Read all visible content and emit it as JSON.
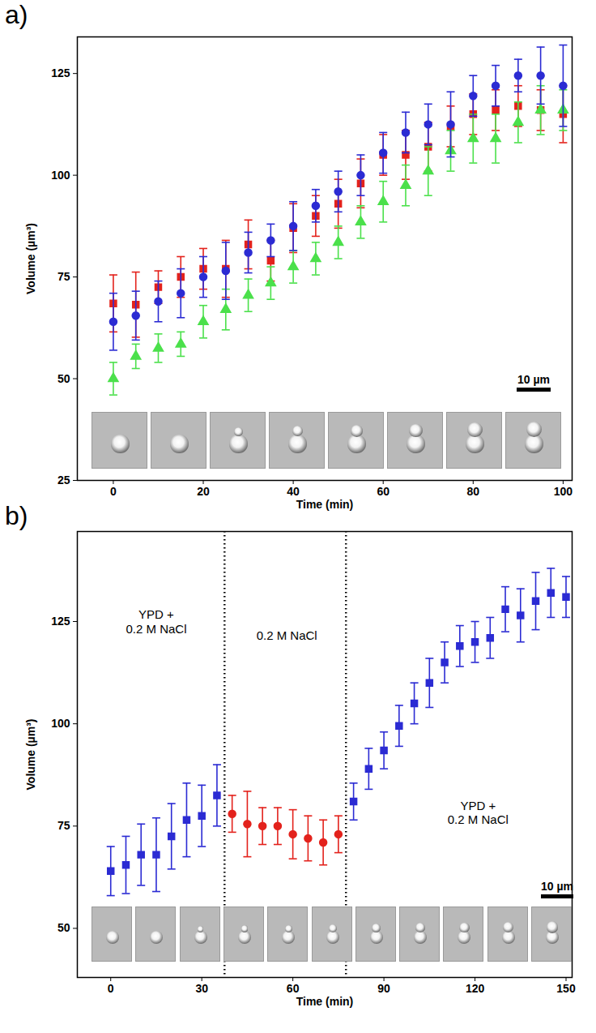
{
  "chart_data": [
    {
      "title": "a)",
      "type": "scatter",
      "x_label": "Time (min)",
      "y_label": "Volume (µm³)",
      "xlim": [
        -8,
        102
      ],
      "xticks": [
        0,
        20,
        40,
        60,
        80,
        100
      ],
      "ylim": [
        25,
        134
      ],
      "yticks": [
        25,
        50,
        75,
        100,
        125
      ],
      "scale_bar": "10 µm",
      "x": [
        0,
        5,
        10,
        15,
        20,
        25,
        30,
        35,
        40,
        45,
        50,
        55,
        60,
        65,
        70,
        75,
        80,
        85,
        90,
        95,
        100
      ],
      "series": [
        {
          "color": "#e3221c",
          "marker": "square",
          "values": [
            68.5,
            68.2,
            72.5,
            75,
            77,
            77,
            83,
            79,
            87,
            90,
            93,
            98,
            105,
            105,
            107,
            112,
            115,
            116,
            117,
            116,
            115
          ],
          "errors": [
            7,
            8,
            4,
            5,
            5,
            7,
            6,
            5,
            6,
            5,
            6,
            6,
            5,
            6,
            6,
            5,
            5,
            5,
            5,
            5,
            7
          ]
        },
        {
          "color": "#4be04b",
          "marker": "triangle",
          "values": [
            50,
            55.5,
            57.5,
            58.5,
            64,
            67,
            70.5,
            73.5,
            77.5,
            79.5,
            83.5,
            88.5,
            93.5,
            97.5,
            101,
            106,
            109,
            109,
            113,
            116,
            116
          ],
          "errors": [
            4,
            3,
            3.5,
            3,
            4,
            5,
            4,
            4,
            4,
            4,
            4,
            4,
            5,
            5,
            6,
            5,
            6,
            6,
            5,
            6,
            5
          ]
        },
        {
          "color": "#2b2bd3",
          "marker": "circle",
          "values": [
            64,
            65.5,
            69,
            71,
            75,
            76.5,
            81,
            84,
            87.5,
            92.5,
            96,
            100,
            105.5,
            110.5,
            112.5,
            112.5,
            119.5,
            122,
            124.5,
            124.5,
            122
          ],
          "errors": [
            7,
            6,
            5,
            6,
            5,
            7,
            5,
            4,
            6,
            4,
            5,
            5,
            5,
            5,
            5,
            8,
            5,
            5,
            4,
            7,
            10
          ]
        }
      ]
    },
    {
      "title": "b)",
      "type": "scatter",
      "x_label": "Time (min)",
      "y_label": "Volume (µm³)",
      "xlim": [
        -11,
        152
      ],
      "xticks": [
        0,
        30,
        60,
        90,
        120,
        150
      ],
      "ylim": [
        38,
        147
      ],
      "yticks": [
        50,
        75,
        100,
        125
      ],
      "scale_bar": "10 µm",
      "vlines": {
        "values": [
          37.5,
          77.5
        ],
        "line_style": "dotted"
      },
      "annotations": [
        {
          "text": "YPD +\n0.2 M NaCl",
          "x": 15,
          "y": 125
        },
        {
          "text": "0.2 M NaCl",
          "x": 58,
          "y": 121.6
        },
        {
          "text": "YPD +\n0.2 M NaCl",
          "x": 121,
          "y": 78.4
        }
      ],
      "series": [
        {
          "color": "#2b2bd3",
          "marker": "square",
          "x": [
            0,
            5,
            10,
            15,
            20,
            25,
            30,
            35
          ],
          "values": [
            64,
            65.5,
            68,
            68,
            72.5,
            76.5,
            77.5,
            82.5
          ],
          "errors": [
            6,
            7,
            7.5,
            9,
            8,
            9,
            7.5,
            7.5
          ]
        },
        {
          "color": "#e3221c",
          "marker": "circle",
          "x": [
            40,
            45,
            50,
            55,
            60,
            65,
            70,
            75
          ],
          "values": [
            78,
            75.5,
            75,
            75,
            73,
            72,
            71,
            73
          ],
          "errors": [
            4.5,
            8,
            4.5,
            4.5,
            6,
            5.5,
            5.5,
            4.5
          ]
        },
        {
          "color": "#2b2bd3",
          "marker": "square",
          "x": [
            80,
            85,
            90,
            95,
            100,
            105,
            110,
            115,
            120,
            125,
            130,
            135,
            140,
            145,
            150
          ],
          "values": [
            81,
            89,
            93.5,
            99.5,
            105,
            110,
            115,
            119,
            120,
            121,
            128,
            126.5,
            130,
            132,
            131
          ],
          "errors": [
            4.5,
            5,
            4.5,
            5,
            5,
            6,
            5,
            5,
            5,
            5,
            5.5,
            6.5,
            7,
            6,
            5
          ]
        }
      ]
    }
  ]
}
